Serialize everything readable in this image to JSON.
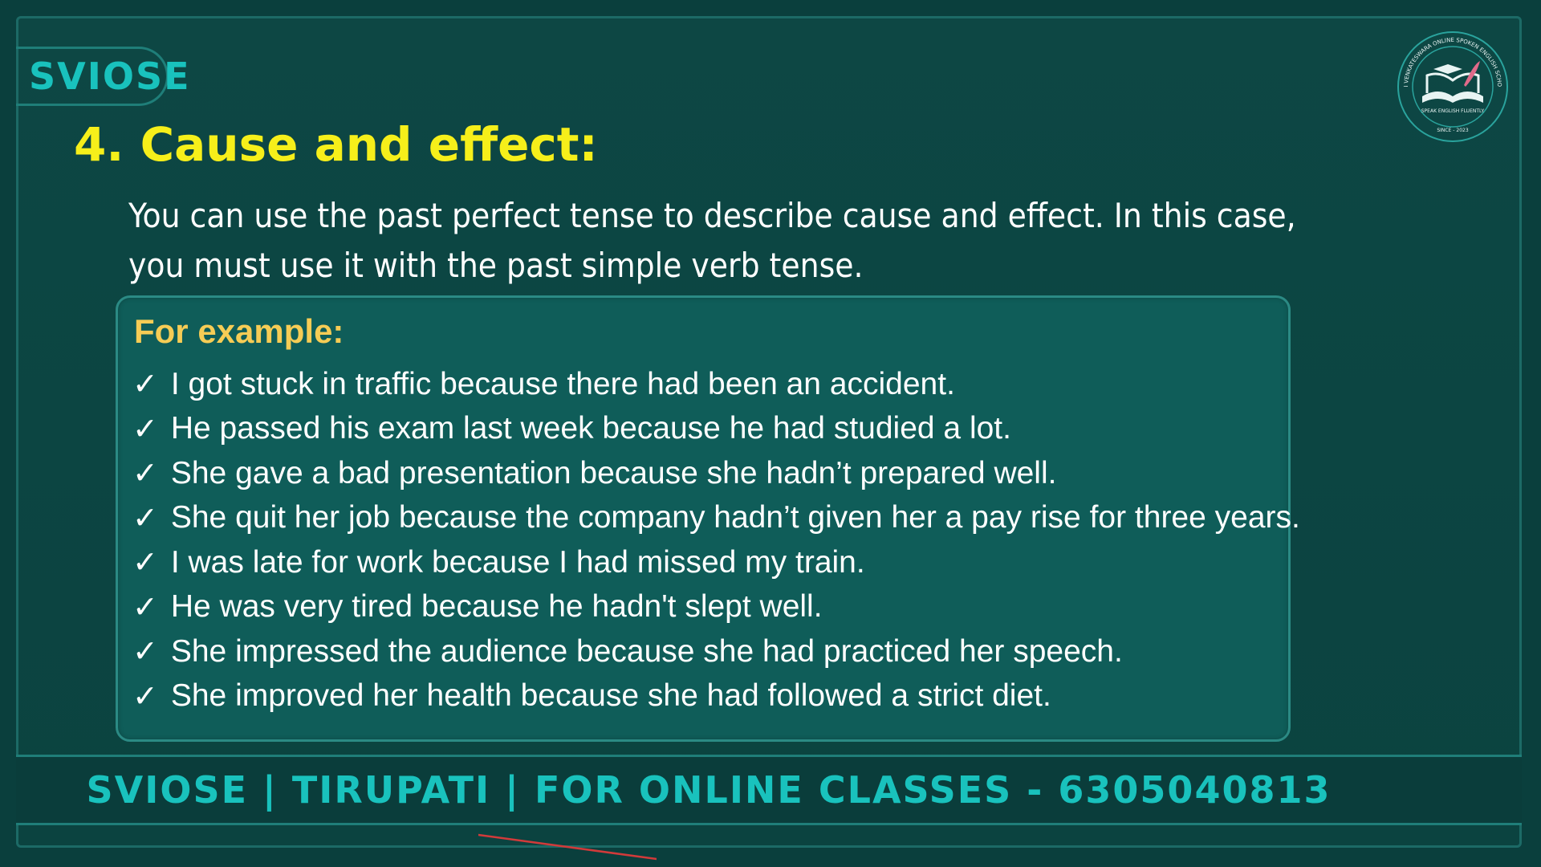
{
  "brand": "SVIOSE",
  "heading": "4. Cause and effect:",
  "intro": "You can use the past perfect tense to describe cause and effect. In this case, you must use it with the past simple verb tense.",
  "example_title": "For example:",
  "examples": [
    "I got stuck in traffic because there had been an accident.",
    "He passed his exam last week because he had studied a lot.",
    "She gave a bad presentation because she hadn’t prepared well.",
    "She quit her job because the company hadn’t given her a pay rise for three years.",
    "I was late for work because I had missed my train.",
    "He was very tired because he hadn't slept well.",
    "She impressed the audience because she had practiced her speech.",
    "She improved her health because she had followed a strict diet."
  ],
  "check_icon": "✓",
  "footer": "SVIOSE | TIRUPATI | FOR ONLINE CLASSES - 6305040813",
  "logo": {
    "icon": "open-book-graduation-cap-feather-icon",
    "ring_text": "SRI VENKATESWARA ONLINE SPOKEN ENGLISH SCHOOL",
    "motto": "SPEAK ENGLISH FLUENTLY",
    "since": "SINCE - 2023"
  },
  "colors": {
    "background": "#0b4340",
    "brand_teal": "#19c2bd",
    "heading_yellow": "#f6ef1a",
    "example_gold": "#f6cc55",
    "box_fill": "#0f5d59"
  }
}
